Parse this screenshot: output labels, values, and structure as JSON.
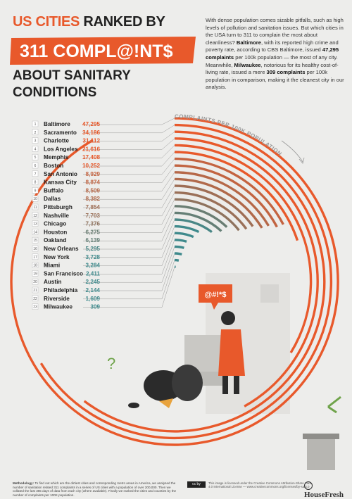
{
  "title": {
    "line1_a": "US CITIES",
    "line1_b": "RANKED BY",
    "banner": "311 COMPL@!NT$",
    "line3": "ABOUT SANITARY CONDITIONS"
  },
  "intro": {
    "p1": "With dense population comes sizable pitfalls, such as high levels of pollution and sanitation issues. But which cities in the USA turn to 311 to complain the most about cleanliness?",
    "b1": "Baltimore",
    "p2": ", with its reported high crime and poverty rate, according to CBS Baltimore, issued",
    "b2": "47,295 complaints",
    "p3": "per 100k population — the most of any city. Meanwhile,",
    "b3": "Milwaukee",
    "p4": ", notorious for its healthy cost-of-living rate, issued a mere",
    "b4": "309 complaints",
    "p5": "per 100k population in comparison, making it the cleanest city in our analysis."
  },
  "speech_bubble": "@#!*$",
  "chart_data": {
    "type": "bar",
    "layout": "radial",
    "axis_label": "COMPLAINTS PER 100K POPULATION",
    "categories": [
      "Baltimore",
      "Sacramento",
      "Charlotte",
      "Los Angeles",
      "Memphis",
      "Boston",
      "San Antonio",
      "Kansas City",
      "Buffalo",
      "Dallas",
      "Pittsburgh",
      "Nashville",
      "Chicago",
      "Houston",
      "Oakland",
      "New Orleans",
      "New York",
      "Miami",
      "San Francisco",
      "Austin",
      "Philadelphia",
      "Riverside",
      "Milwaukee"
    ],
    "ranks": [
      "1",
      "2",
      "3",
      "4",
      "5",
      "6",
      "7",
      "8",
      "9",
      "10",
      "11",
      "12",
      "13",
      "14",
      "15",
      "16",
      "17",
      "18",
      "19",
      "20",
      "21",
      "22",
      "23"
    ],
    "values": [
      47295,
      34186,
      31112,
      21616,
      17408,
      10252,
      8929,
      8874,
      8509,
      8382,
      7854,
      7703,
      7376,
      6275,
      6139,
      5295,
      3728,
      3284,
      2411,
      2245,
      2144,
      1609,
      309
    ],
    "value_labels": [
      "47,295",
      "34,186",
      "31,112",
      "21,616",
      "17,408",
      "10,252",
      "8,929",
      "8,874",
      "8,509",
      "8,382",
      "7,854",
      "7,703",
      "7,376",
      "6,275",
      "6,139",
      "5,295",
      "3,728",
      "3,284",
      "2,411",
      "2,245",
      "2,144",
      "1,609",
      "309"
    ],
    "colors": {
      "high": "#e8592b",
      "low": "#3f8a8c"
    }
  },
  "footer": {
    "methodology_label": "Methodology:",
    "methodology": "To find out which are the dirtiest cities and corresponding metro areas in America, we analysed the number of sanitation related 311 complaints in a series of US cities with a population of over 200,000. Then we collated the last 365 days of data from each city (where available). Finally we ranked the cities and counties by the number of complaints per 100K population.",
    "cc_badge": "cc by",
    "license": "This image is licensed under the Creative Commons Attribution-Share Alike 4.0 International License — www.creativecommons.org/licenses/by-sa/4.0",
    "brand": "HouseFresh"
  }
}
